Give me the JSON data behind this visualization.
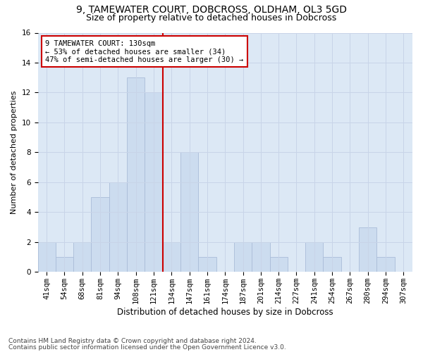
{
  "title1": "9, TAMEWATER COURT, DOBCROSS, OLDHAM, OL3 5GD",
  "title2": "Size of property relative to detached houses in Dobcross",
  "xlabel": "Distribution of detached houses by size in Dobcross",
  "ylabel": "Number of detached properties",
  "categories": [
    "41sqm",
    "54sqm",
    "68sqm",
    "81sqm",
    "94sqm",
    "108sqm",
    "121sqm",
    "134sqm",
    "147sqm",
    "161sqm",
    "174sqm",
    "187sqm",
    "201sqm",
    "214sqm",
    "227sqm",
    "241sqm",
    "254sqm",
    "267sqm",
    "280sqm",
    "294sqm",
    "307sqm"
  ],
  "values": [
    2,
    1,
    2,
    5,
    6,
    13,
    12,
    2,
    8,
    1,
    0,
    2,
    2,
    1,
    0,
    2,
    1,
    0,
    3,
    1,
    0
  ],
  "bar_color": "#ccdcef",
  "bar_edge_color": "#aabdd8",
  "vline_x_index": 6.5,
  "vline_color": "#cc0000",
  "annotation_text": "9 TAMEWATER COURT: 130sqm\n← 53% of detached houses are smaller (34)\n47% of semi-detached houses are larger (30) →",
  "annotation_box_facecolor": "#ffffff",
  "annotation_box_edgecolor": "#cc0000",
  "ylim": [
    0,
    16
  ],
  "yticks": [
    0,
    2,
    4,
    6,
    8,
    10,
    12,
    14,
    16
  ],
  "grid_color": "#c8d4e8",
  "bg_color": "#dce8f5",
  "footer1": "Contains HM Land Registry data © Crown copyright and database right 2024.",
  "footer2": "Contains public sector information licensed under the Open Government Licence v3.0.",
  "title1_fontsize": 10,
  "title2_fontsize": 9,
  "xlabel_fontsize": 8.5,
  "ylabel_fontsize": 8,
  "tick_fontsize": 7.5,
  "annot_fontsize": 7.5,
  "footer_fontsize": 6.5
}
